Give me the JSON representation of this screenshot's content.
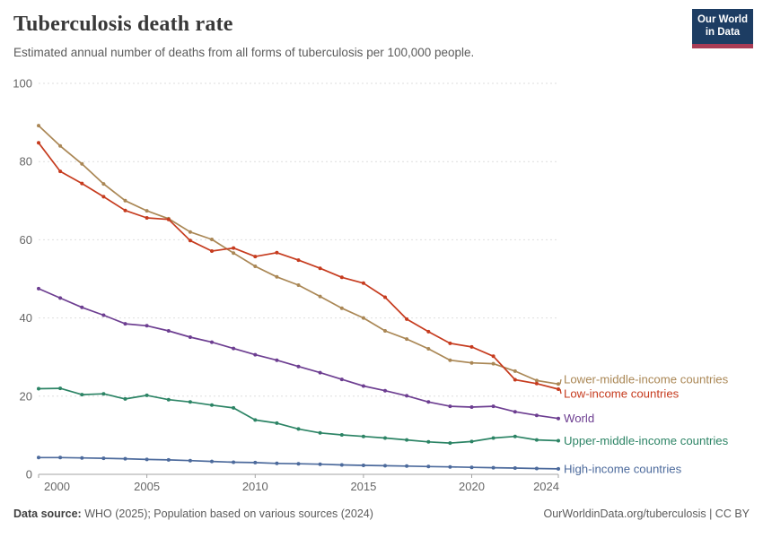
{
  "header": {
    "title": "Tuberculosis death rate",
    "subtitle": "Estimated annual number of deaths from all forms of tuberculosis per 100,000 people.",
    "logo": {
      "line1": "Our World",
      "line2": "in Data",
      "bg_color": "#1d3d63",
      "accent_color": "#a93c55"
    }
  },
  "footer": {
    "source_label": "Data source:",
    "source_text": " WHO (2025); Population based on various sources (2024)",
    "attribution": "OurWorldinData.org/tuberculosis | CC BY"
  },
  "style": {
    "grid_color": "#dedede",
    "axis_color": "#a3a3a3",
    "tick_label_color": "#666666"
  },
  "chart_data": {
    "type": "line",
    "title": "Tuberculosis death rate",
    "xlabel": "",
    "ylabel": "Estimated deaths per 100,000 people",
    "ylim": [
      0,
      100
    ],
    "grid": "horizontal-dashed",
    "legend_position": "right-end-labels",
    "x_start": 2000,
    "x_end": 2024,
    "x": [
      2000,
      2001,
      2002,
      2003,
      2004,
      2005,
      2006,
      2007,
      2008,
      2009,
      2010,
      2011,
      2012,
      2013,
      2014,
      2015,
      2016,
      2017,
      2018,
      2019,
      2020,
      2021,
      2022,
      2023,
      2024
    ],
    "xticks": [
      2000,
      2005,
      2010,
      2015,
      2020,
      2024
    ],
    "yticks": [
      0,
      20,
      40,
      60,
      80,
      100
    ],
    "series": [
      {
        "name": "Lower-middle-income countries",
        "slug": "lower-middle-income-countries",
        "color": "#aa8755",
        "values": [
          89.2,
          84.0,
          79.4,
          74.3,
          70.0,
          67.4,
          65.4,
          62.0,
          60.1,
          56.6,
          53.2,
          50.5,
          48.4,
          45.5,
          42.5,
          40.0,
          36.7,
          34.6,
          32.1,
          29.2,
          28.5,
          28.3,
          26.4,
          24.0,
          23.1
        ]
      },
      {
        "name": "Low-income countries",
        "slug": "low-income-countries",
        "color": "#c63b1e",
        "values": [
          84.8,
          77.5,
          74.4,
          71.0,
          67.5,
          65.6,
          65.2,
          59.8,
          57.1,
          57.9,
          55.7,
          56.7,
          54.8,
          52.7,
          50.4,
          48.9,
          45.3,
          39.7,
          36.5,
          33.5,
          32.6,
          30.2,
          24.2,
          23.2,
          21.8
        ]
      },
      {
        "name": "World",
        "slug": "world",
        "color": "#6d3e91",
        "values": [
          47.5,
          45.1,
          42.7,
          40.7,
          38.5,
          38.0,
          36.7,
          35.1,
          33.8,
          32.2,
          30.6,
          29.2,
          27.6,
          26.0,
          24.3,
          22.6,
          21.4,
          20.1,
          18.5,
          17.4,
          17.2,
          17.4,
          16.0,
          15.1,
          14.3
        ]
      },
      {
        "name": "Upper-middle-income countries",
        "slug": "upper-middle-income-countries",
        "color": "#2c8465",
        "values": [
          21.9,
          22.0,
          20.4,
          20.6,
          19.3,
          20.2,
          19.1,
          18.5,
          17.7,
          17.0,
          13.9,
          13.1,
          11.6,
          10.6,
          10.1,
          9.7,
          9.3,
          8.8,
          8.3,
          8.0,
          8.4,
          9.3,
          9.7,
          8.8,
          8.6
        ]
      },
      {
        "name": "High-income countries",
        "slug": "high-income-countries",
        "color": "#4c6a9c",
        "values": [
          4.3,
          4.3,
          4.2,
          4.1,
          4.0,
          3.8,
          3.7,
          3.5,
          3.3,
          3.1,
          3.0,
          2.8,
          2.7,
          2.6,
          2.4,
          2.3,
          2.2,
          2.1,
          2.0,
          1.9,
          1.8,
          1.7,
          1.6,
          1.5,
          1.4
        ]
      }
    ]
  }
}
